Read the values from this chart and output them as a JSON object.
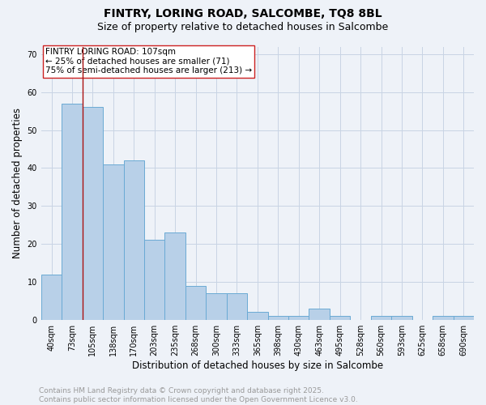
{
  "title_line1": "FINTRY, LORING ROAD, SALCOMBE, TQ8 8BL",
  "title_line2": "Size of property relative to detached houses in Salcombe",
  "xlabel": "Distribution of detached houses by size in Salcombe",
  "ylabel": "Number of detached properties",
  "bar_labels": [
    "40sqm",
    "73sqm",
    "105sqm",
    "138sqm",
    "170sqm",
    "203sqm",
    "235sqm",
    "268sqm",
    "300sqm",
    "333sqm",
    "365sqm",
    "398sqm",
    "430sqm",
    "463sqm",
    "495sqm",
    "528sqm",
    "560sqm",
    "593sqm",
    "625sqm",
    "658sqm",
    "690sqm"
  ],
  "bar_values": [
    12,
    57,
    56,
    41,
    42,
    21,
    23,
    9,
    7,
    7,
    2,
    1,
    1,
    3,
    1,
    0,
    1,
    1,
    0,
    1,
    1
  ],
  "bar_color": "#b8d0e8",
  "bar_edge_color": "#6aaad4",
  "grid_color": "#c8d4e4",
  "background_color": "#eef2f8",
  "vline_color": "#aa1111",
  "annotation_text": "FINTRY LORING ROAD: 107sqm\n← 25% of detached houses are smaller (71)\n75% of semi-detached houses are larger (213) →",
  "annotation_box_color": "white",
  "annotation_box_edge_color": "#cc2222",
  "ylim": [
    0,
    72
  ],
  "yticks": [
    0,
    10,
    20,
    30,
    40,
    50,
    60,
    70
  ],
  "footer_line1": "Contains HM Land Registry data © Crown copyright and database right 2025.",
  "footer_line2": "Contains public sector information licensed under the Open Government Licence v3.0.",
  "footer_color": "#999999",
  "title_fontsize": 10,
  "subtitle_fontsize": 9,
  "axis_label_fontsize": 8.5,
  "tick_fontsize": 7,
  "annotation_fontsize": 7.5,
  "footer_fontsize": 6.5
}
